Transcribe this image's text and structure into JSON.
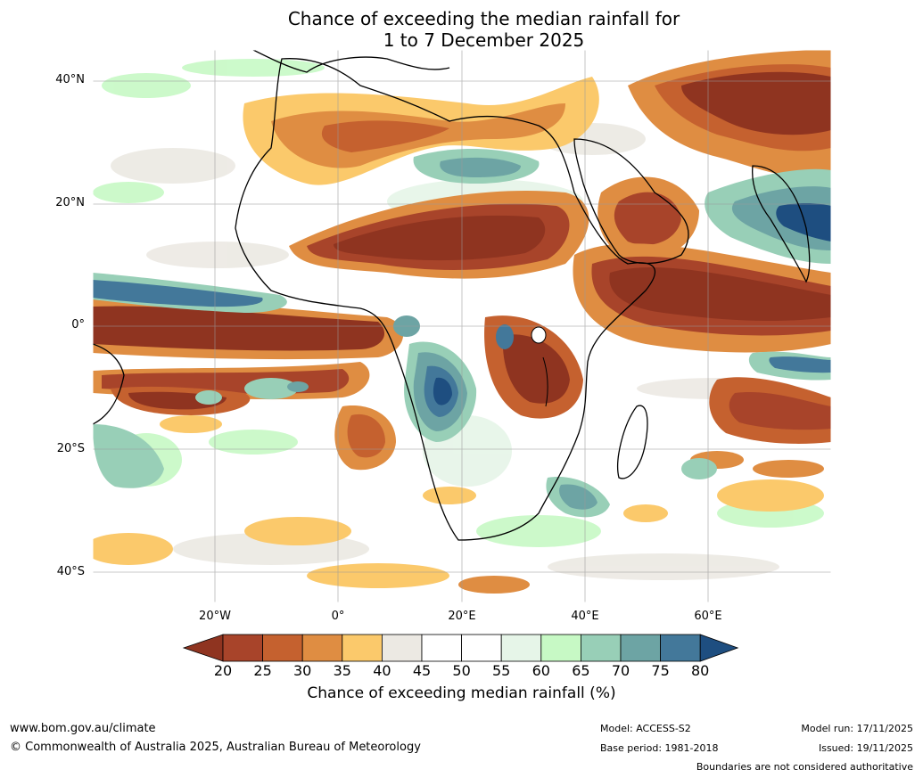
{
  "header": {
    "title_line1": "Chance of exceeding the median rainfall for",
    "title_line2": "1 to 7 December 2025"
  },
  "axes": {
    "lat_labels": [
      "40°N",
      "20°N",
      "0°",
      "20°S",
      "40°S"
    ],
    "lon_labels": [
      "20°W",
      "0°",
      "20°E",
      "40°E",
      "60°E"
    ]
  },
  "colorbar": {
    "label": "Chance of exceeding median rainfall (%)",
    "ticks": [
      "20",
      "25",
      "30",
      "35",
      "40",
      "45",
      "50",
      "55",
      "60",
      "65",
      "70",
      "75",
      "80"
    ],
    "colors": [
      "#8f3420",
      "#a8442a",
      "#c5612f",
      "#df8d42",
      "#fbc96b",
      "#ece9e3",
      "#ffffff",
      "#ffffff",
      "#e6f5e8",
      "#c7f9c5",
      "#98cfb7",
      "#6da4a4",
      "#43789a",
      "#1e4e80"
    ]
  },
  "footer": {
    "website": "www.bom.gov.au/climate",
    "copyright": "© Commonwealth of Australia 2025, Australian Bureau of Meteorology",
    "model": "Model: ACCESS-S2",
    "base_period": "Base period: 1981-2018",
    "model_run": "Model run: 17/11/2025",
    "issued": "Issued: 19/11/2025",
    "disclaimer": "Boundaries are not considered authoritative"
  }
}
